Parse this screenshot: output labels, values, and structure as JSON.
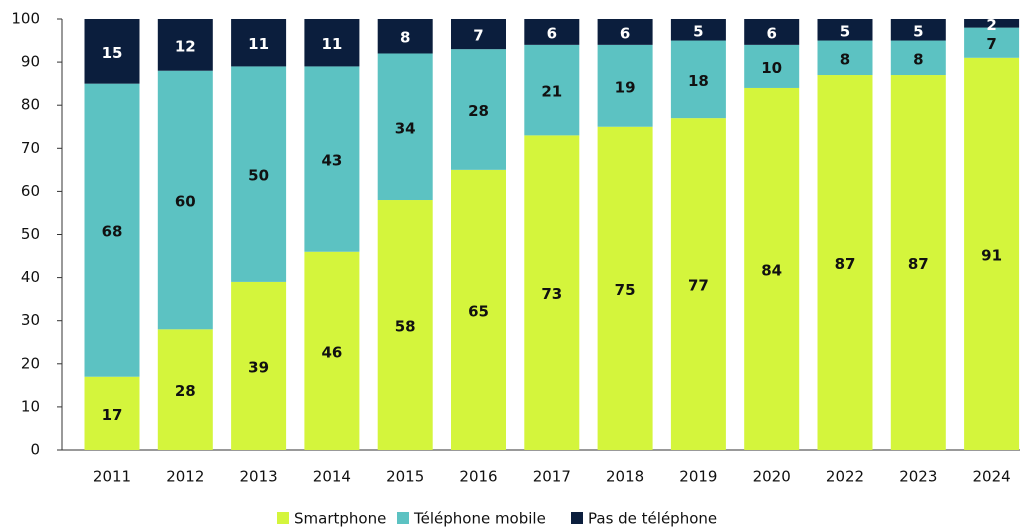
{
  "chart_data": {
    "type": "stacked_bar",
    "categories": [
      "2011",
      "2012",
      "2013",
      "2014",
      "2015",
      "2016",
      "2017",
      "2018",
      "2019",
      "2020",
      "2022",
      "2023",
      "2024"
    ],
    "series": [
      {
        "name": "Smartphone",
        "color": "#d4f53c",
        "values": [
          17,
          28,
          39,
          46,
          58,
          65,
          73,
          75,
          77,
          84,
          87,
          87,
          91
        ]
      },
      {
        "name": "Téléphone mobile",
        "color": "#5cc2c2",
        "values": [
          68,
          60,
          50,
          43,
          34,
          28,
          21,
          19,
          18,
          10,
          8,
          8,
          7
        ]
      },
      {
        "name": "Pas de téléphone",
        "color": "#0b1e3d",
        "values": [
          15,
          12,
          11,
          11,
          8,
          7,
          6,
          6,
          5,
          6,
          5,
          5,
          2
        ]
      }
    ],
    "ylim": [
      0,
      100
    ],
    "yticks": [
      0,
      10,
      20,
      30,
      40,
      50,
      60,
      70,
      80,
      90,
      100
    ],
    "legend": "bottom"
  }
}
